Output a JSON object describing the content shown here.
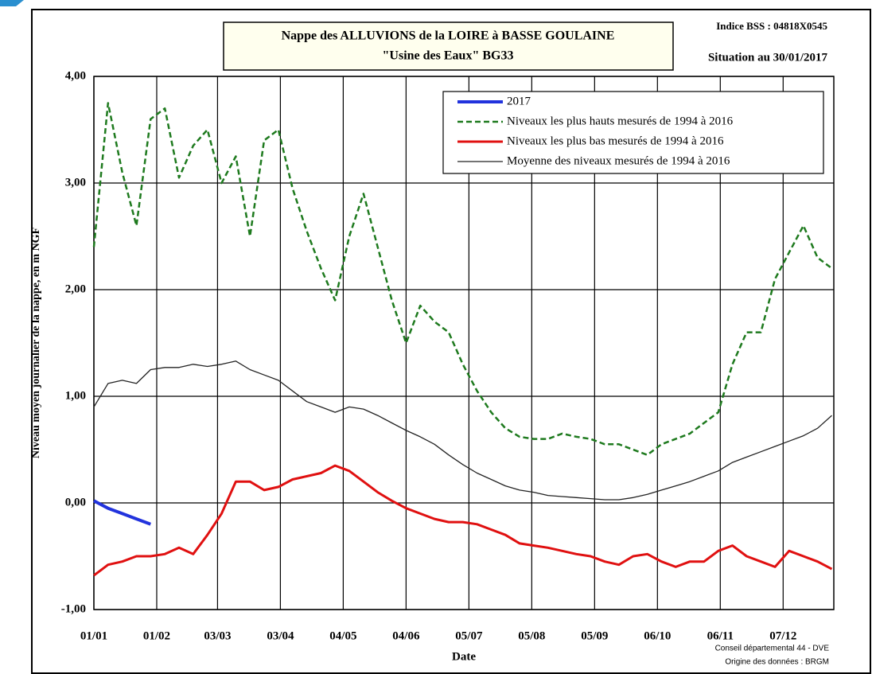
{
  "chart_data": {
    "type": "line",
    "title": "Nappe des ALLUVIONS de la LOIRE à BASSE GOULAINE",
    "subtitle": "\"Usine des Eaux\" BG33",
    "index_label": "Indice BSS : 04818X0545",
    "situation": "Situation au 30/01/2017",
    "ylabel": "Niveau moyen journalier de la nappe, en m NGF",
    "xlabel": "Date",
    "credits": [
      "Conseil départemental 44 - DVE",
      "Origine des données : BRGM"
    ],
    "x": [
      0,
      7,
      14,
      21,
      28,
      35,
      42,
      49,
      56,
      63,
      70,
      77,
      84,
      91,
      98,
      105,
      112,
      119,
      126,
      133,
      140,
      147,
      154,
      161,
      168,
      175,
      182,
      189,
      196,
      203,
      210,
      217,
      224,
      231,
      238,
      245,
      252,
      259,
      266,
      273,
      280,
      287,
      294,
      301,
      308,
      315,
      322,
      329,
      336,
      343,
      350,
      357,
      364
    ],
    "xlim": [
      0,
      365
    ],
    "xticks": [
      {
        "value": 0,
        "label": "01/01"
      },
      {
        "value": 31,
        "label": "01/02"
      },
      {
        "value": 61,
        "label": "03/03"
      },
      {
        "value": 92,
        "label": "03/04"
      },
      {
        "value": 123,
        "label": "04/05"
      },
      {
        "value": 154,
        "label": "04/06"
      },
      {
        "value": 185,
        "label": "05/07"
      },
      {
        "value": 216,
        "label": "05/08"
      },
      {
        "value": 247,
        "label": "05/09"
      },
      {
        "value": 278,
        "label": "06/10"
      },
      {
        "value": 309,
        "label": "06/11"
      },
      {
        "value": 340,
        "label": "07/12"
      }
    ],
    "ylim": [
      -1,
      4
    ],
    "yticks": [
      {
        "value": -1,
        "label": "-1,00"
      },
      {
        "value": 0,
        "label": "0,00"
      },
      {
        "value": 1,
        "label": "1,00"
      },
      {
        "value": 2,
        "label": "2,00"
      },
      {
        "value": 3,
        "label": "3,00"
      },
      {
        "value": 4,
        "label": "4,00"
      }
    ],
    "grid": true,
    "series": [
      {
        "name": "2017",
        "color": "#2233dd",
        "width": 4,
        "dash": "none",
        "values": [
          0.02,
          -0.05,
          -0.1,
          -0.15,
          -0.2,
          null,
          null,
          null,
          null,
          null,
          null,
          null,
          null,
          null,
          null,
          null,
          null,
          null,
          null,
          null,
          null,
          null,
          null,
          null,
          null,
          null,
          null,
          null,
          null,
          null,
          null,
          null,
          null,
          null,
          null,
          null,
          null,
          null,
          null,
          null,
          null,
          null,
          null,
          null,
          null,
          null,
          null,
          null,
          null,
          null,
          null,
          null,
          null
        ]
      },
      {
        "name": "Niveaux les plus hauts mesurés de 1994 à 2016",
        "color": "#1e7a1e",
        "width": 2.5,
        "dash": "7 4",
        "values": [
          2.4,
          3.75,
          3.1,
          2.6,
          3.6,
          3.7,
          3.05,
          3.35,
          3.5,
          3.0,
          3.25,
          2.5,
          3.4,
          3.5,
          2.95,
          2.55,
          2.2,
          1.9,
          2.5,
          2.9,
          2.4,
          1.9,
          1.5,
          1.85,
          1.7,
          1.6,
          1.3,
          1.05,
          0.85,
          0.7,
          0.62,
          0.6,
          0.6,
          0.65,
          0.62,
          0.6,
          0.55,
          0.55,
          0.5,
          0.45,
          0.55,
          0.6,
          0.65,
          0.75,
          0.85,
          1.3,
          1.6,
          1.6,
          2.1,
          2.35,
          2.6,
          2.3,
          2.2
        ]
      },
      {
        "name": "Niveaux les plus bas mesurés de 1994 à 2016",
        "color": "#e01010",
        "width": 3,
        "dash": "none",
        "values": [
          -0.68,
          -0.58,
          -0.55,
          -0.5,
          -0.5,
          -0.48,
          -0.42,
          -0.48,
          -0.3,
          -0.1,
          0.2,
          0.2,
          0.12,
          0.15,
          0.22,
          0.25,
          0.28,
          0.35,
          0.3,
          0.2,
          0.1,
          0.02,
          -0.05,
          -0.1,
          -0.15,
          -0.18,
          -0.18,
          -0.2,
          -0.25,
          -0.3,
          -0.38,
          -0.4,
          -0.42,
          -0.45,
          -0.48,
          -0.5,
          -0.55,
          -0.58,
          -0.5,
          -0.48,
          -0.55,
          -0.6,
          -0.55,
          -0.55,
          -0.45,
          -0.4,
          -0.5,
          -0.55,
          -0.6,
          -0.45,
          -0.5,
          -0.55,
          -0.62
        ]
      },
      {
        "name": "Moyenne des niveaux mesurés de 1994 à 2016",
        "color": "#222222",
        "width": 1.3,
        "dash": "none",
        "values": [
          0.9,
          1.12,
          1.15,
          1.12,
          1.25,
          1.27,
          1.27,
          1.3,
          1.28,
          1.3,
          1.33,
          1.25,
          1.2,
          1.15,
          1.05,
          0.95,
          0.9,
          0.85,
          0.9,
          0.88,
          0.82,
          0.75,
          0.68,
          0.62,
          0.55,
          0.45,
          0.36,
          0.28,
          0.22,
          0.16,
          0.12,
          0.1,
          0.07,
          0.06,
          0.05,
          0.04,
          0.03,
          0.03,
          0.05,
          0.08,
          0.12,
          0.16,
          0.2,
          0.25,
          0.3,
          0.38,
          0.43,
          0.48,
          0.53,
          0.58,
          0.63,
          0.7,
          0.82
        ]
      }
    ]
  }
}
